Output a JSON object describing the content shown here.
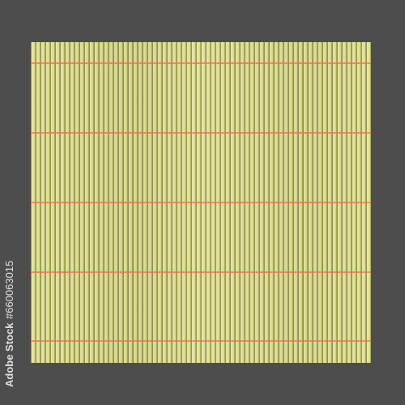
{
  "watermark": {
    "brand": "Adobe Stock",
    "id": "#660063015"
  }
}
